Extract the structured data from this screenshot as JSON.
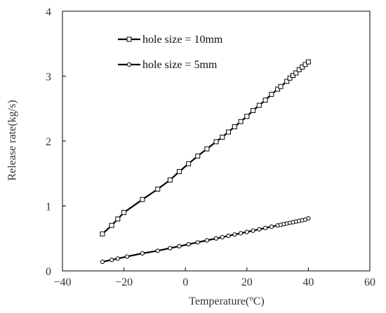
{
  "chart_data": {
    "type": "line",
    "title": "",
    "xlabel_text": "Temperature(",
    "xlabel_sup": "o",
    "xlabel_unit": "C)",
    "ylabel": "Release rate(kg/s)",
    "xlim": [
      -40,
      60
    ],
    "ylim": [
      0,
      4
    ],
    "xticks": [
      -40,
      -20,
      0,
      20,
      40,
      60
    ],
    "yticks": [
      0,
      1,
      2,
      3,
      4
    ],
    "xtick_labels": [
      "−40",
      "−20",
      "0",
      "20",
      "40",
      "60"
    ],
    "ytick_labels": [
      "0",
      "1",
      "2",
      "3",
      "4"
    ],
    "grid": false,
    "legend_position": "top-left",
    "series": [
      {
        "name": "hole size = 10mm",
        "marker": "square",
        "color": "#000000",
        "x": [
          -27,
          -24,
          -22,
          -20,
          -14,
          -9,
          -5,
          -2,
          1,
          4,
          7,
          10,
          12,
          14,
          16,
          18,
          20,
          22,
          24,
          26,
          28,
          30,
          31,
          33,
          34,
          35,
          36,
          37,
          38,
          39,
          40
        ],
        "y": [
          0.57,
          0.7,
          0.8,
          0.9,
          1.1,
          1.26,
          1.4,
          1.53,
          1.65,
          1.77,
          1.88,
          1.99,
          2.06,
          2.14,
          2.22,
          2.3,
          2.38,
          2.47,
          2.55,
          2.63,
          2.72,
          2.8,
          2.84,
          2.92,
          2.97,
          3.01,
          3.05,
          3.1,
          3.14,
          3.18,
          3.22
        ]
      },
      {
        "name": "hole size = 5mm",
        "marker": "circle",
        "color": "#000000",
        "x": [
          -27,
          -24,
          -22,
          -19,
          -14,
          -9,
          -5,
          -2,
          1,
          4,
          7,
          10,
          12,
          14,
          16,
          18,
          20,
          22,
          24,
          26,
          28,
          30,
          31,
          32,
          33,
          34,
          35,
          36,
          37,
          38,
          39,
          40
        ],
        "y": [
          0.14,
          0.17,
          0.19,
          0.22,
          0.27,
          0.31,
          0.35,
          0.38,
          0.41,
          0.44,
          0.47,
          0.5,
          0.52,
          0.54,
          0.56,
          0.58,
          0.6,
          0.62,
          0.64,
          0.66,
          0.68,
          0.7,
          0.71,
          0.72,
          0.73,
          0.74,
          0.75,
          0.76,
          0.77,
          0.78,
          0.79,
          0.81
        ]
      }
    ]
  }
}
